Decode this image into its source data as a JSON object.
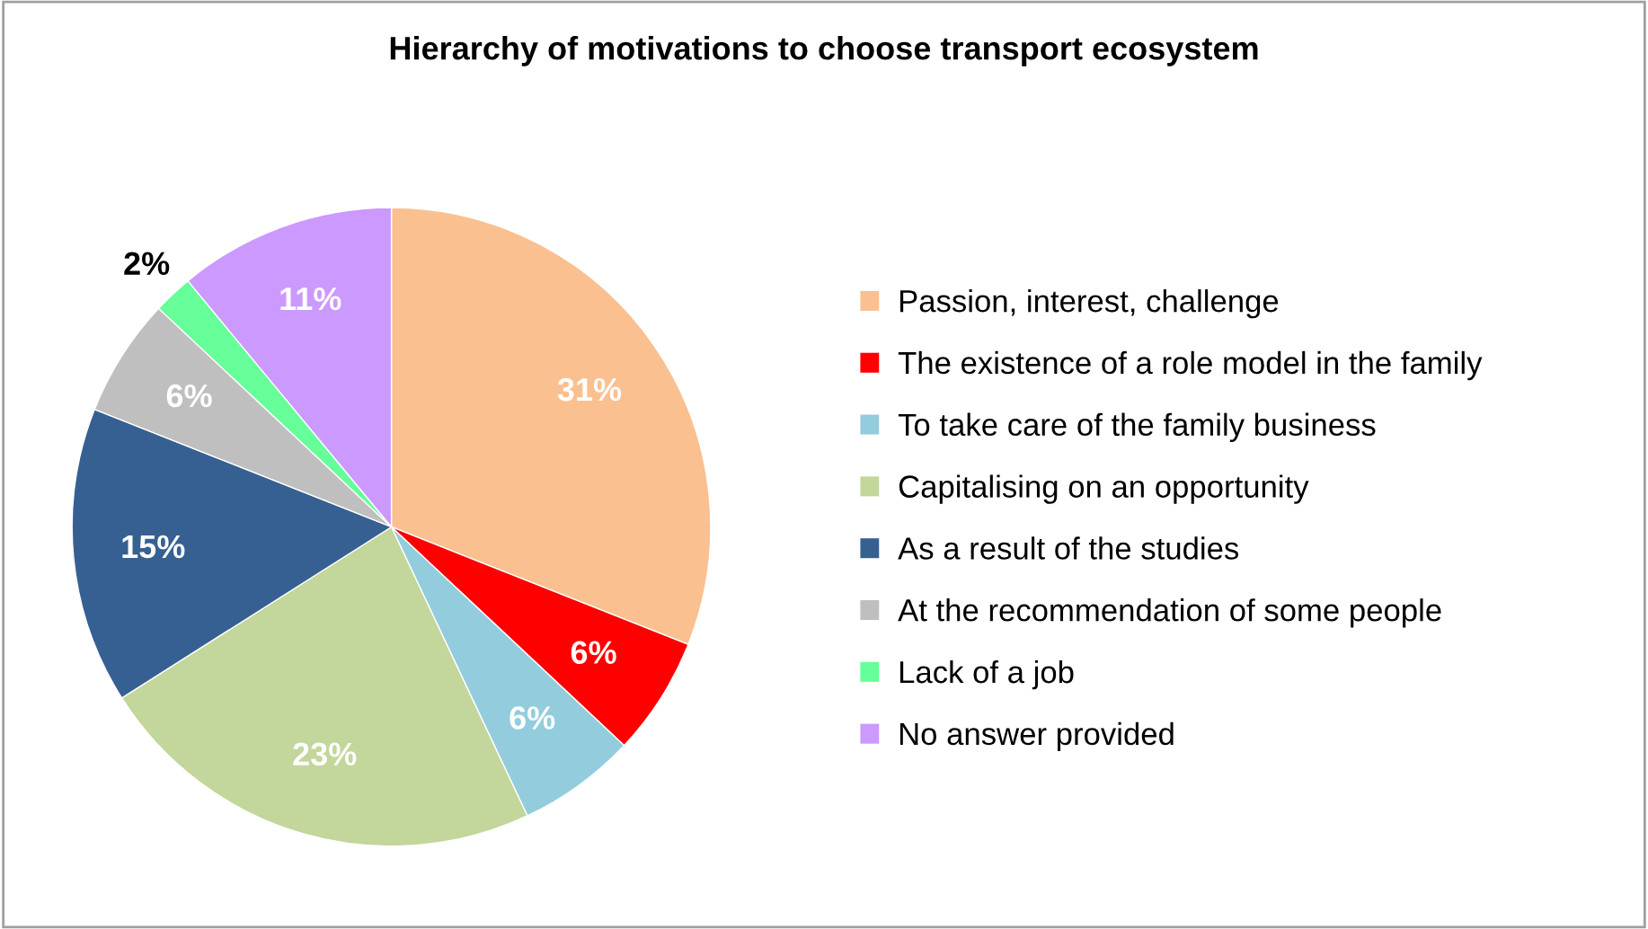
{
  "chart_data": {
    "type": "pie",
    "title": "Hierarchy of motivations to choose transport ecosystem",
    "categories": [
      "Passion, interest, challenge",
      "The existence of a role model in the family",
      "To take care of the family business",
      "Capitalising on an opportunity",
      "As a result of the studies",
      "At the recommendation of some people",
      "Lack of a job",
      "No answer provided"
    ],
    "values": [
      31,
      6,
      6,
      23,
      15,
      6,
      2,
      11
    ],
    "value_labels": [
      "31%",
      "6%",
      "6%",
      "23%",
      "15%",
      "6%",
      "2%",
      "11%"
    ],
    "colors": [
      "#fac090",
      "#ff0000",
      "#93cddd",
      "#c3d69b",
      "#376092",
      "#bfbfbf",
      "#66ff99",
      "#cc99ff"
    ],
    "legend": "right"
  }
}
